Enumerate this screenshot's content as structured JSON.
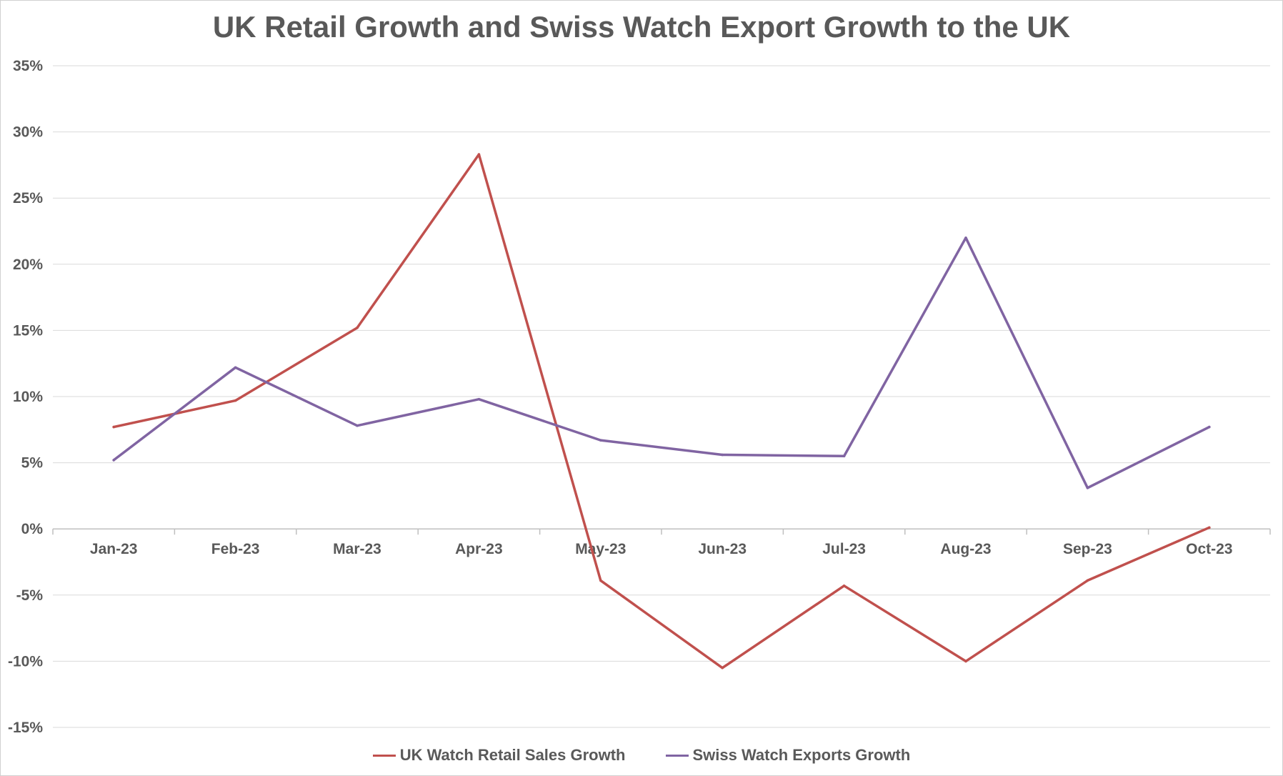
{
  "chart_data": {
    "type": "line",
    "title": "UK Retail Growth and Swiss Watch Export Growth to the UK",
    "xlabel": "",
    "ylabel": "",
    "categories": [
      "Jan-23",
      "Feb-23",
      "Mar-23",
      "Apr-23",
      "May-23",
      "Jun-23",
      "Jul-23",
      "Aug-23",
      "Sep-23",
      "Oct-23"
    ],
    "ylim": [
      -15,
      35
    ],
    "ytick_step": 5,
    "ytick_format": "percent",
    "grid": true,
    "legend_position": "bottom",
    "series": [
      {
        "name": "UK Watch Retail Sales Growth",
        "color": "#c0504d",
        "values": [
          7.7,
          9.7,
          15.2,
          28.3,
          -3.9,
          -10.5,
          -4.3,
          -10.0,
          -3.9,
          0.1
        ]
      },
      {
        "name": "Swiss Watch Exports Growth",
        "color": "#8064a2",
        "values": [
          5.2,
          12.2,
          7.8,
          9.8,
          6.7,
          5.6,
          5.5,
          22.0,
          3.1,
          7.7
        ]
      }
    ]
  }
}
